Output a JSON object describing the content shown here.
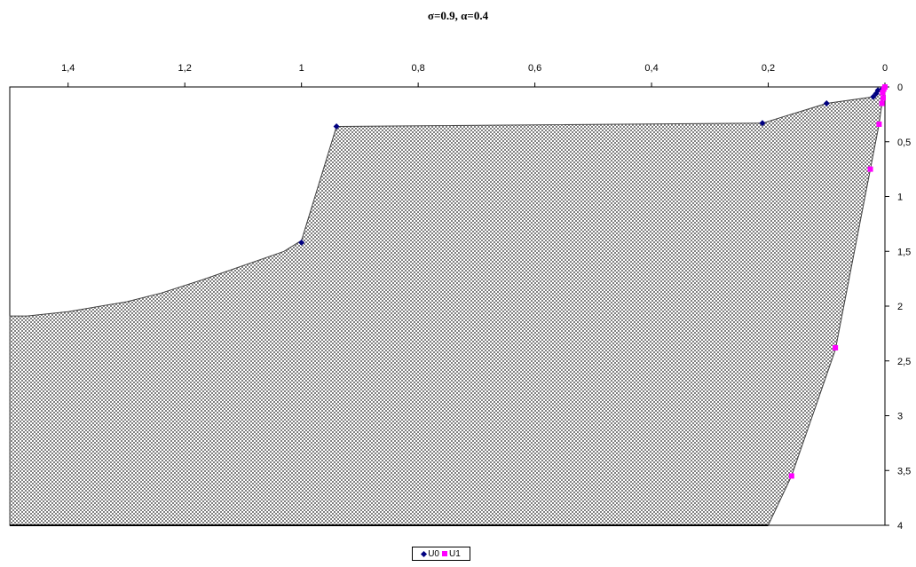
{
  "title": "σ=0.9, α=0.4",
  "chart_data": {
    "type": "area",
    "title": "σ=0.9, α=0.4",
    "xlabel": "",
    "ylabel": "",
    "x_reversed": true,
    "y_reversed": true,
    "x_axis_position": "top",
    "y_axis_position": "right",
    "xlim": [
      0,
      1.5
    ],
    "ylim": [
      0,
      4
    ],
    "x_ticks": [
      0,
      0.2,
      0.4,
      0.6,
      0.8,
      1,
      1.2,
      1.4
    ],
    "x_tick_labels": [
      "0",
      "0,2",
      "0,4",
      "0,6",
      "0,8",
      "1",
      "1,2",
      "1,4"
    ],
    "y_ticks": [
      0,
      0.5,
      1,
      1.5,
      2,
      2.5,
      3,
      3.5,
      4
    ],
    "y_tick_labels": [
      "0",
      "0,5",
      "1",
      "1,5",
      "2",
      "2,5",
      "3",
      "3,5",
      "4"
    ],
    "grid": false,
    "legend_position": "bottom",
    "fill_pattern": "checkerboard",
    "fill_colors": [
      "#808080",
      "#ffffff"
    ],
    "region_boundary": [
      [
        0.0,
        0.0
      ],
      [
        0.007,
        0.01
      ],
      [
        0.012,
        0.03
      ],
      [
        0.015,
        0.06
      ],
      [
        0.02,
        0.09
      ],
      [
        0.1,
        0.15
      ],
      [
        0.21,
        0.33
      ],
      [
        0.94,
        0.36
      ],
      [
        1.0,
        1.4
      ],
      [
        1.03,
        1.5
      ],
      [
        1.1,
        1.63
      ],
      [
        1.17,
        1.76
      ],
      [
        1.24,
        1.88
      ],
      [
        1.3,
        1.96
      ],
      [
        1.4,
        2.05
      ],
      [
        1.47,
        2.09
      ],
      [
        1.5,
        2.09
      ],
      [
        1.5,
        4.0
      ],
      [
        0.2,
        4.0
      ],
      [
        0.16,
        3.55
      ],
      [
        0.085,
        2.4
      ],
      [
        0.025,
        0.75
      ],
      [
        0.01,
        0.34
      ],
      [
        0.005,
        0.15
      ],
      [
        0.0,
        0.0
      ]
    ],
    "series": [
      {
        "name": "U0",
        "marker": "diamond",
        "color": "#000080",
        "x": [
          0.0,
          0.005,
          0.012,
          0.015,
          0.02,
          0.1,
          0.21,
          0.94,
          1.0
        ],
        "y": [
          0.0,
          0.02,
          0.03,
          0.06,
          0.09,
          0.15,
          0.33,
          0.36,
          1.42
        ]
      },
      {
        "name": "U1",
        "marker": "square",
        "color": "#ff00ff",
        "x": [
          0.0,
          0.002,
          0.004,
          0.003,
          0.005,
          0.01,
          0.025,
          0.085,
          0.16
        ],
        "y": [
          0.0,
          0.02,
          0.05,
          0.1,
          0.15,
          0.34,
          0.75,
          2.38,
          3.55
        ]
      }
    ]
  }
}
